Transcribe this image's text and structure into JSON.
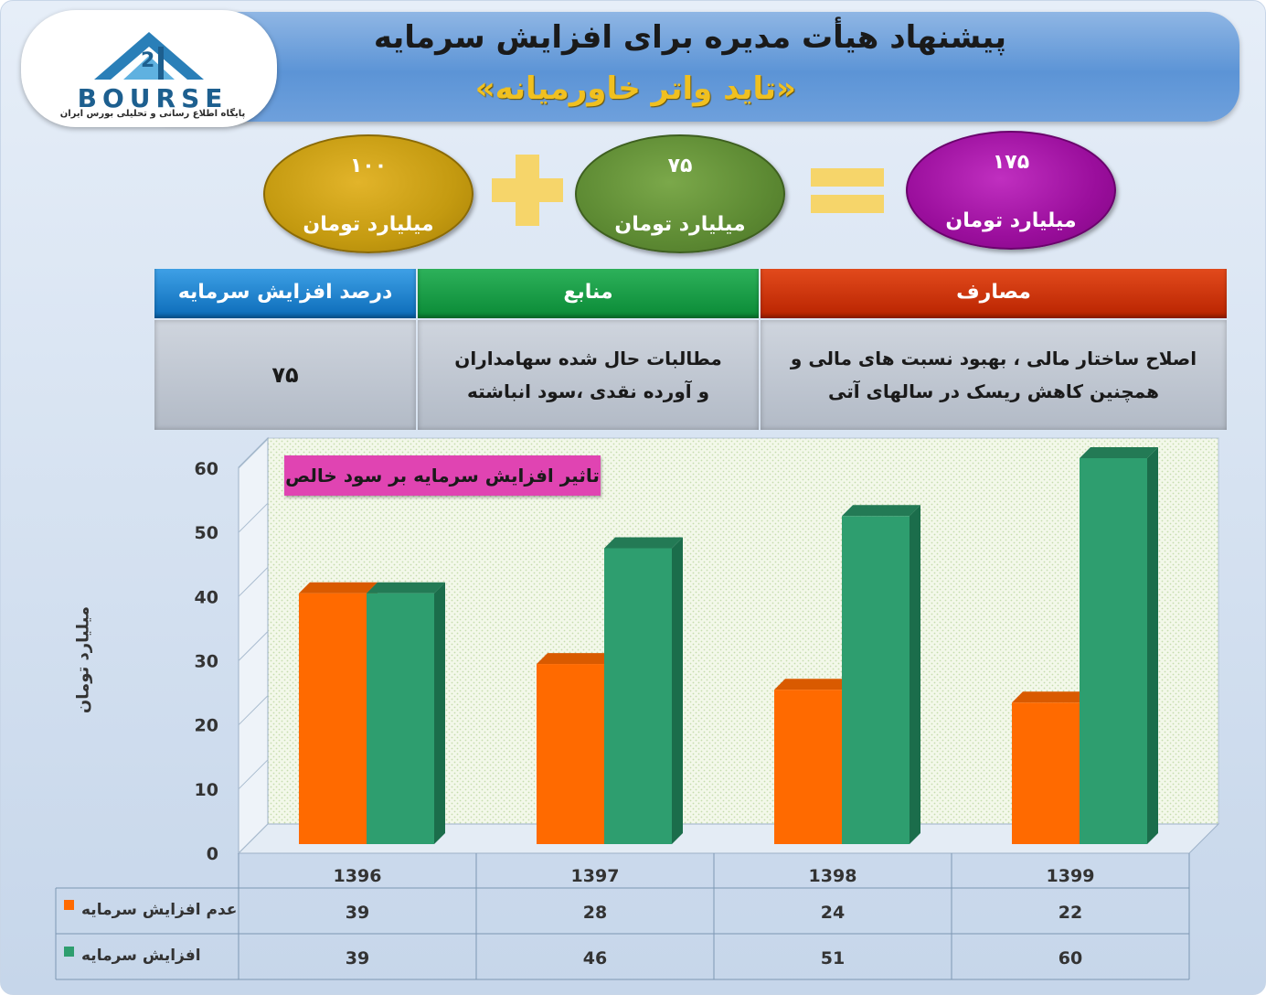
{
  "logo": {
    "text": "BOURSE",
    "subtitle": "پایگاه اطلاع رسانی و تحلیلی بورس ایران"
  },
  "header": {
    "title": "پیشنهاد هیأت مدیره برای افزایش سرمایه",
    "subtitle": "«تاید واتر خاورمیانه»"
  },
  "equation": {
    "left": {
      "value": "۱۰۰",
      "unit": "میلیارد تومان",
      "color": "#c49a10"
    },
    "middle": {
      "value": "۷۵",
      "unit": "میلیارد تومان",
      "color": "#5d8a33"
    },
    "result": {
      "value": "۱۷۵",
      "unit": "میلیارد تومان",
      "color": "#9a0e9c"
    }
  },
  "info_table": {
    "headers": {
      "percent": "درصد افزایش سرمایه",
      "sources": "منابع",
      "uses": "مصارف"
    },
    "values": {
      "percent": "۷۵",
      "sources": "مطالبات حال شده سهامداران و آورده نقدی ،سود انباشته",
      "uses": "اصلاح ساختار مالی ، بهبود نسبت های مالی و همچنین کاهش ریسک در سالهای آتی"
    }
  },
  "chart_data": {
    "type": "bar",
    "title": "تاثیر افزایش سرمایه بر سود خالص",
    "ylabel": "میلیارد تومان",
    "xlabel": "",
    "categories": [
      "1396",
      "1397",
      "1398",
      "1399"
    ],
    "ylim": [
      0,
      60
    ],
    "yticks": [
      0,
      10,
      20,
      30,
      40,
      50,
      60
    ],
    "grid": false,
    "legend": "table-bottom-left",
    "series": [
      {
        "name": "عدم افزایش سرمایه",
        "values": [
          39,
          28,
          24,
          22
        ],
        "color": "#ff6a00"
      },
      {
        "name": "افزایش سرمایه",
        "values": [
          39,
          46,
          51,
          60
        ],
        "color": "#2e9e6f"
      }
    ]
  }
}
